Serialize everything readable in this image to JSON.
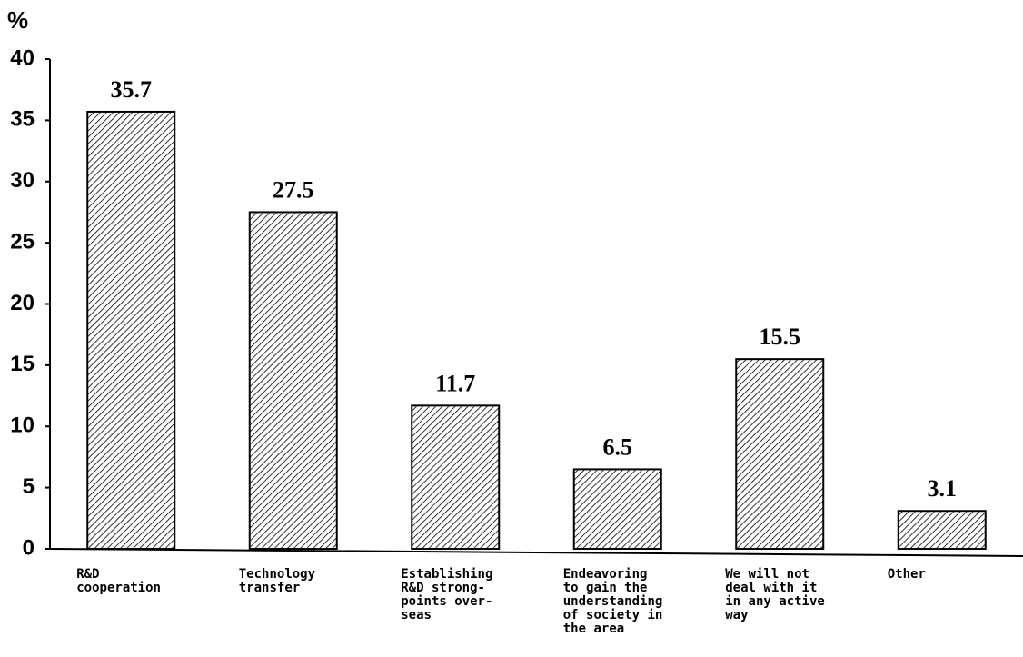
{
  "chart_data": {
    "type": "bar",
    "y_label": "%",
    "categories": [
      "R&D\ncooperation",
      "Technology\ntransfer",
      "Establishing\nR&D strong-\npoints over-\nseas",
      "Endeavoring\nto gain the\nunderstanding\nof society in\nthe area",
      "We will not\ndeal with it\nin any active\nway",
      "Other"
    ],
    "values": [
      35.7,
      27.5,
      11.7,
      6.5,
      15.5,
      3.1
    ],
    "color": "#000000",
    "ylim": [
      0,
      40
    ],
    "yticks": [
      0,
      5,
      10,
      15,
      20,
      25,
      30,
      35,
      40
    ],
    "grid": false
  }
}
